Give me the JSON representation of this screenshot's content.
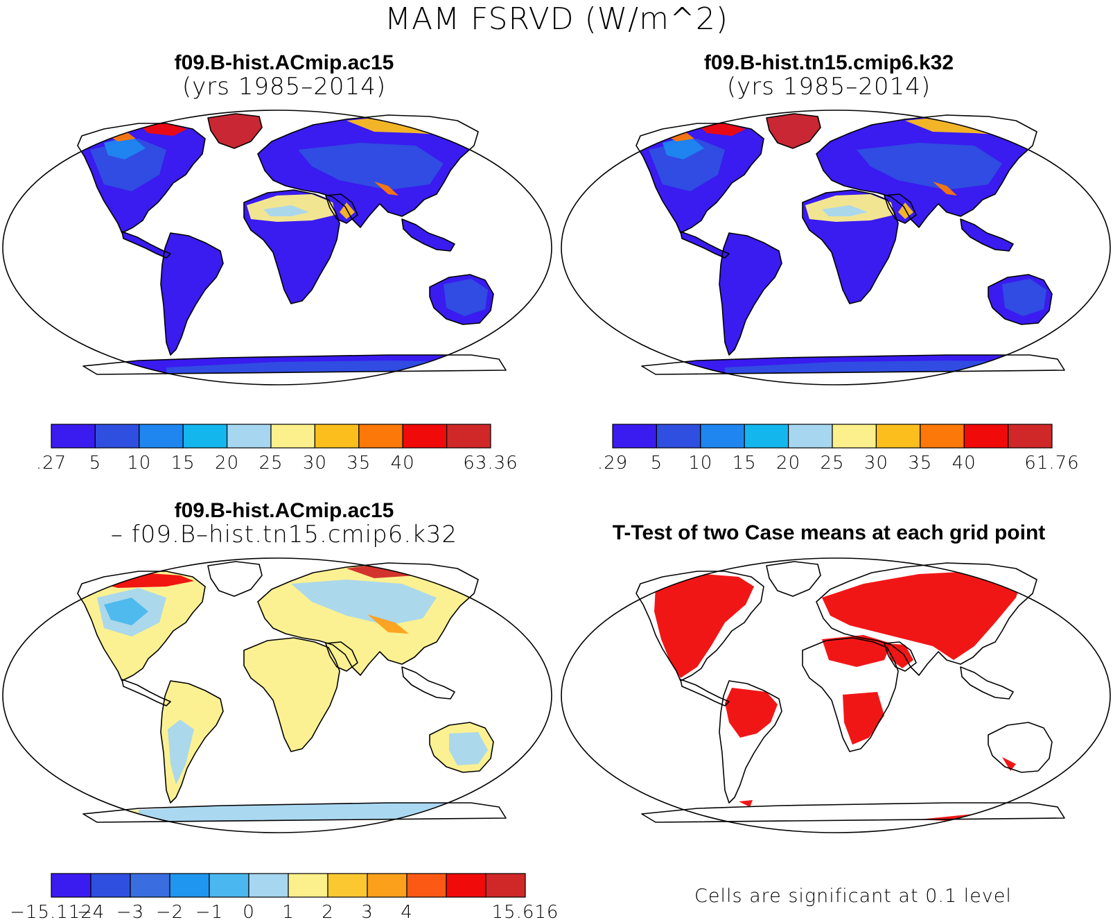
{
  "title": "MAM FSRVD (W/m^2)",
  "panels": [
    {
      "id": "case1",
      "title_line1": "f09.B-hist.ACmip.ac15",
      "title_line2": "(yrs 1985–2014)",
      "colorbar": {
        "labels": [
          ".27",
          "5",
          "10",
          "15",
          "20",
          "25",
          "30",
          "35",
          "40",
          "63.36"
        ],
        "colors": [
          "#3a1bf0",
          "#2f4fe0",
          "#1f86f0",
          "#14b6ee",
          "#a6d6f0",
          "#fcf08c",
          "#fcbe1c",
          "#fc7808",
          "#f00a0a",
          "#d02828"
        ]
      }
    },
    {
      "id": "case2",
      "title_line1": "f09.B-hist.tn15.cmip6.k32",
      "title_line2": "(yrs 1985–2014)",
      "colorbar": {
        "labels": [
          ".29",
          "5",
          "10",
          "15",
          "20",
          "25",
          "30",
          "35",
          "40",
          "61.76"
        ],
        "colors": [
          "#3a1bf0",
          "#2f4fe0",
          "#1f86f0",
          "#14b6ee",
          "#a6d6f0",
          "#fcf08c",
          "#fcbe1c",
          "#fc7808",
          "#f00a0a",
          "#d02828"
        ]
      }
    },
    {
      "id": "diff",
      "title_line1": "f09.B-hist.ACmip.ac15",
      "title_line2": "– f09.B–hist.tn15.cmip6.k32",
      "colorbar": {
        "labels": [
          "−15.112",
          "−4",
          "−3",
          "−2",
          "−1",
          "0",
          "1",
          "2",
          "3",
          "4",
          "15.616"
        ],
        "colors": [
          "#3a1bf0",
          "#2f4fe0",
          "#3a6ee0",
          "#1f96f0",
          "#4ab8ee",
          "#a6d6f0",
          "#fcf08c",
          "#fcc832",
          "#fca01c",
          "#fc5a14",
          "#f00a0a",
          "#d02828"
        ]
      }
    },
    {
      "id": "ttest",
      "title_line1": "T-Test of two Case means at each grid point",
      "note": "Cells are significant at 0.1 level",
      "significant_color": "#f00a0a"
    }
  ]
}
